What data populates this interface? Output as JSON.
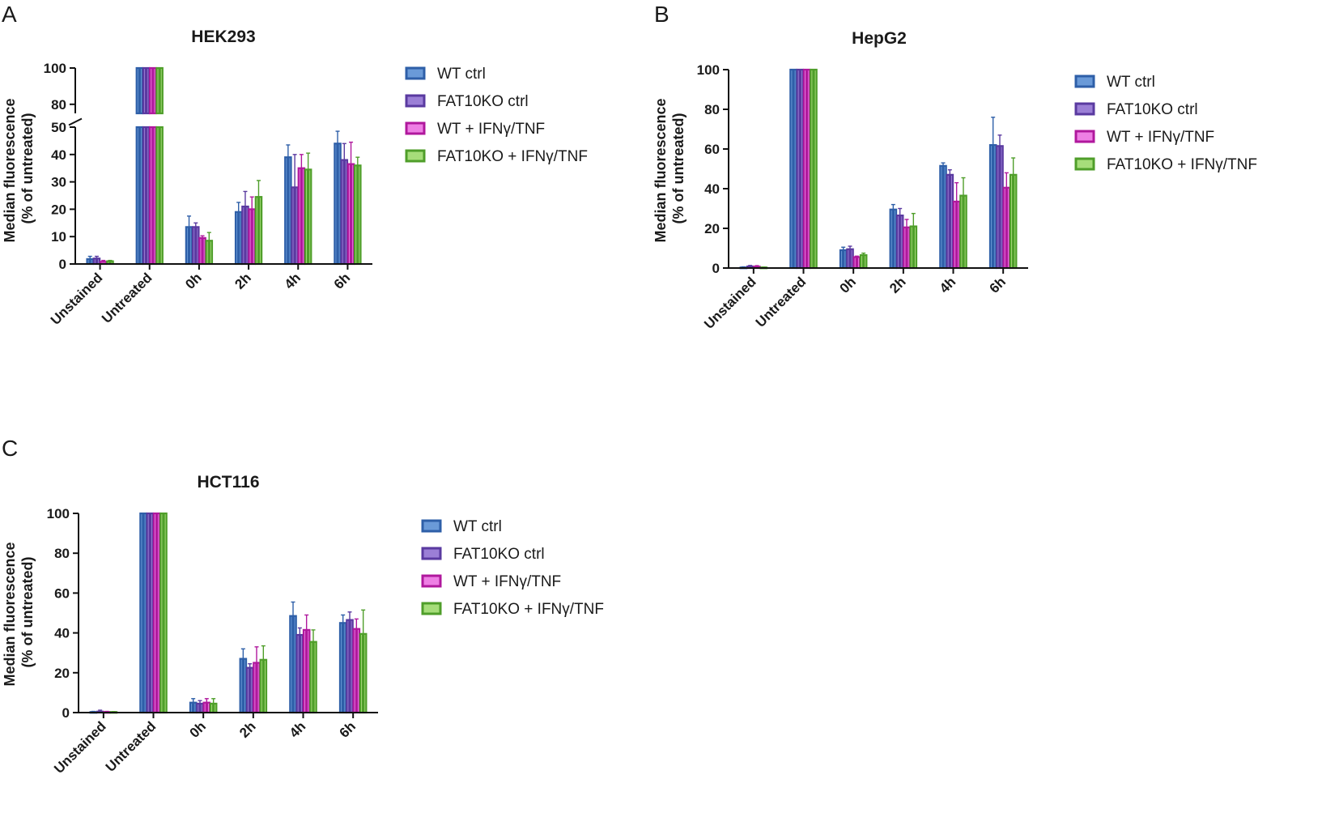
{
  "series_names": [
    "WT ctrl",
    "FAT10KO ctrl",
    "WT + IFNγ/TNF",
    "FAT10KO + IFNγ/TNF"
  ],
  "series_colors": {
    "fill": [
      "#2e5fa8",
      "#5a3aa0",
      "#b0189d",
      "#4f9e2a"
    ],
    "light": [
      "#6a9ad8",
      "#9b7fd6",
      "#ee7fe4",
      "#a6dd7a"
    ],
    "stroke": [
      "#1e4a8a",
      "#3f2483",
      "#8c0d7c",
      "#3a7f1c"
    ]
  },
  "chart_data": [
    {
      "panel_letter": "A",
      "type": "bar",
      "title": "HEK293",
      "ylabel_line1": "Median fluorescence",
      "ylabel_line2": "(% of untreated)",
      "categories": [
        "Unstained",
        "Untreated",
        "0h",
        "2h",
        "4h",
        "6h"
      ],
      "ylim": [
        0,
        100
      ],
      "axis_break": [
        55,
        75
      ],
      "yticks": [
        0,
        10,
        20,
        30,
        40,
        50,
        80,
        100
      ],
      "series": [
        {
          "name": "WT ctrl",
          "values": [
            1.8,
            100,
            13.5,
            19,
            39,
            44
          ],
          "errors": [
            1.0,
            0,
            4.0,
            3.5,
            4.5,
            4.5
          ]
        },
        {
          "name": "FAT10KO ctrl",
          "values": [
            2.0,
            100,
            13.5,
            21,
            28,
            38
          ],
          "errors": [
            0.8,
            0,
            1.5,
            5.5,
            12,
            6
          ]
        },
        {
          "name": "WT + IFNγ/TNF",
          "values": [
            0.8,
            100,
            9.5,
            20,
            35,
            36.5
          ],
          "errors": [
            0.5,
            0,
            0.8,
            4.5,
            5,
            8
          ]
        },
        {
          "name": "FAT10KO + IFNγ/TNF",
          "values": [
            1.0,
            100,
            8.5,
            24.5,
            34.5,
            36
          ],
          "errors": [
            0.3,
            0,
            3,
            6,
            6,
            3
          ]
        }
      ]
    },
    {
      "panel_letter": "B",
      "type": "bar",
      "title": "HepG2",
      "ylabel_line1": "Median fluorescence",
      "ylabel_line2": "(% of untreated)",
      "categories": [
        "Unstained",
        "Untreated",
        "0h",
        "2h",
        "4h",
        "6h"
      ],
      "ylim": [
        0,
        100
      ],
      "yticks": [
        0,
        20,
        40,
        60,
        80,
        100
      ],
      "series": [
        {
          "name": "WT ctrl",
          "values": [
            0.3,
            100,
            9,
            29.5,
            51.5,
            62
          ],
          "errors": [
            0.3,
            0,
            1.5,
            2.5,
            1.5,
            14
          ]
        },
        {
          "name": "FAT10KO ctrl",
          "values": [
            0.8,
            100,
            9.5,
            26.5,
            47,
            61.5
          ],
          "errors": [
            0.5,
            0,
            1.5,
            3.5,
            2.5,
            5.5
          ]
        },
        {
          "name": "WT + IFNγ/TNF",
          "values": [
            0.7,
            100,
            5.5,
            20.5,
            33.5,
            40.5
          ],
          "errors": [
            0.5,
            0,
            0.5,
            4,
            9.5,
            7.5
          ]
        },
        {
          "name": "FAT10KO + IFNγ/TNF",
          "values": [
            0.3,
            100,
            6.5,
            21,
            36.5,
            47
          ],
          "errors": [
            0.2,
            0,
            1,
            6.5,
            9,
            8.5
          ]
        }
      ]
    },
    {
      "panel_letter": "C",
      "type": "bar",
      "title": "HCT116",
      "ylabel_line1": "Median fluorescence",
      "ylabel_line2": "(% of untreated)",
      "categories": [
        "Unstained",
        "Untreated",
        "0h",
        "2h",
        "4h",
        "6h"
      ],
      "ylim": [
        0,
        100
      ],
      "yticks": [
        0,
        20,
        40,
        60,
        80,
        100
      ],
      "series": [
        {
          "name": "WT ctrl",
          "values": [
            0.3,
            100,
            5,
            27,
            48.5,
            45
          ],
          "errors": [
            0.3,
            0,
            2,
            5,
            7,
            4
          ]
        },
        {
          "name": "FAT10KO ctrl",
          "values": [
            0.5,
            100,
            4.5,
            22.5,
            39,
            46.5
          ],
          "errors": [
            0.7,
            0,
            1.5,
            2,
            3.5,
            4
          ]
        },
        {
          "name": "WT + IFNγ/TNF",
          "values": [
            0.3,
            100,
            5,
            25,
            41.5,
            42
          ],
          "errors": [
            0.3,
            0,
            2,
            8,
            7.5,
            5
          ]
        },
        {
          "name": "FAT10KO + IFNγ/TNF",
          "values": [
            0.3,
            100,
            4.5,
            26.5,
            35.5,
            39.5
          ],
          "errors": [
            0.2,
            0,
            2.5,
            7,
            6,
            12
          ]
        }
      ]
    }
  ]
}
